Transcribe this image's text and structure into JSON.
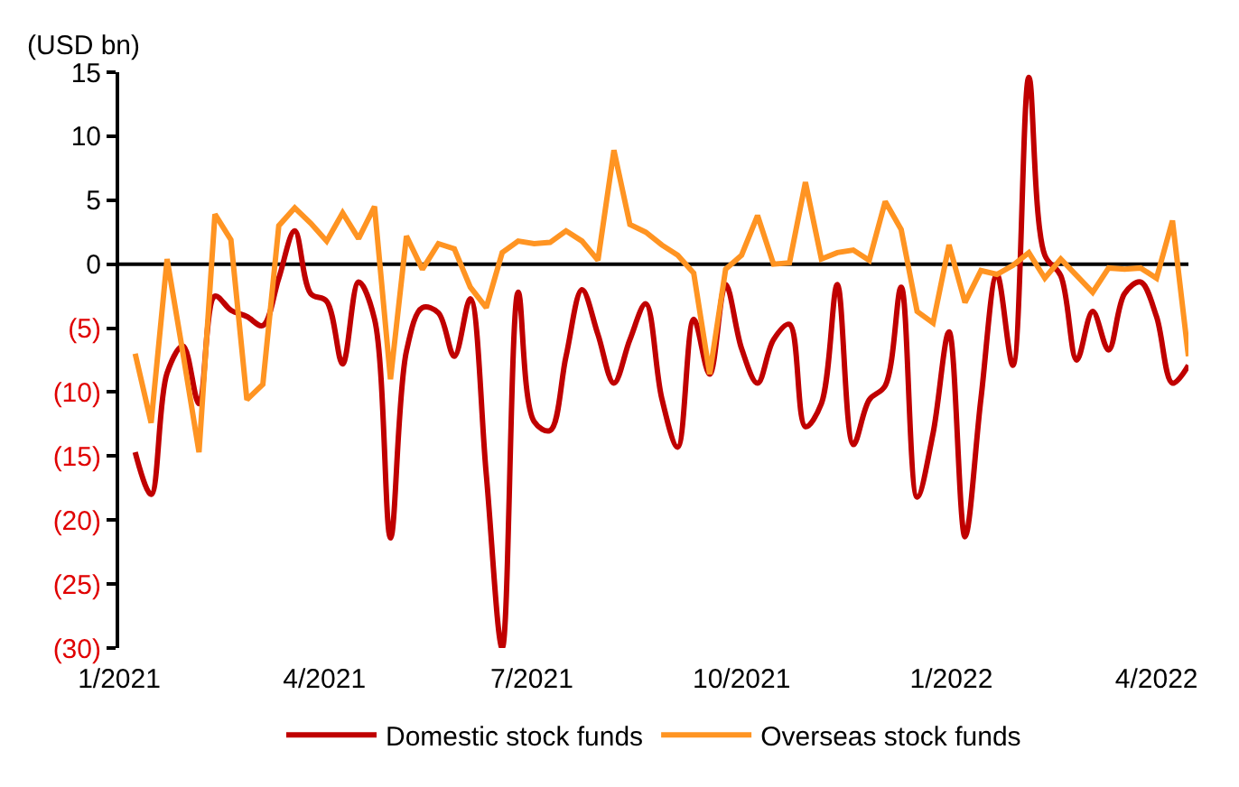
{
  "chart_data": {
    "type": "line",
    "ylabel": "(USD bn)",
    "x": [
      "2021-01-08",
      "2021-01-15",
      "2021-01-22",
      "2021-01-29",
      "2021-02-05",
      "2021-02-12",
      "2021-02-19",
      "2021-02-26",
      "2021-03-05",
      "2021-03-12",
      "2021-03-19",
      "2021-03-26",
      "2021-04-02",
      "2021-04-09",
      "2021-04-16",
      "2021-04-23",
      "2021-04-30",
      "2021-05-07",
      "2021-05-14",
      "2021-05-21",
      "2021-05-28",
      "2021-06-04",
      "2021-06-11",
      "2021-06-18",
      "2021-06-25",
      "2021-07-02",
      "2021-07-09",
      "2021-07-16",
      "2021-07-23",
      "2021-07-30",
      "2021-08-06",
      "2021-08-13",
      "2021-08-20",
      "2021-08-27",
      "2021-09-03",
      "2021-09-10",
      "2021-09-17",
      "2021-09-24",
      "2021-10-01",
      "2021-10-08",
      "2021-10-15",
      "2021-10-22",
      "2021-10-29",
      "2021-11-05",
      "2021-11-12",
      "2021-11-19",
      "2021-11-26",
      "2021-12-03",
      "2021-12-10",
      "2021-12-17",
      "2021-12-24",
      "2021-12-31",
      "2022-01-07",
      "2022-01-14",
      "2022-01-21",
      "2022-01-28",
      "2022-02-04",
      "2022-02-11",
      "2022-02-18",
      "2022-02-25",
      "2022-03-04",
      "2022-03-11",
      "2022-03-18",
      "2022-03-25",
      "2022-04-01",
      "2022-04-08",
      "2022-04-15"
    ],
    "series": [
      {
        "name": "Domestic stock funds",
        "color": "#c00000",
        "values": [
          -14.7,
          -18.0,
          -8.5,
          -6.4,
          -10.9,
          -2.5,
          -3.6,
          -4.1,
          -4.8,
          -1.1,
          2.6,
          -2.3,
          -2.9,
          -7.8,
          -1.4,
          -4.3,
          -21.4,
          -6.8,
          -3.4,
          -3.8,
          -7.2,
          -2.7,
          -16.4,
          -30.0,
          -2.2,
          -12.3,
          -13.0,
          -7.2,
          -2.0,
          -5.5,
          -9.3,
          -5.9,
          -3.1,
          -10.5,
          -14.3,
          -4.3,
          -8.6,
          -1.6,
          -6.6,
          -9.3,
          -5.9,
          -4.7,
          -12.7,
          -10.9,
          -1.6,
          -14.1,
          -10.6,
          -9.5,
          -1.8,
          -18.2,
          -13.2,
          -5.3,
          -21.3,
          -10.5,
          -0.8,
          -7.9,
          14.6,
          0.7,
          -0.9,
          -7.5,
          -3.7,
          -6.7,
          -2.3,
          -1.4,
          -4.1,
          -9.3,
          -7.9
        ]
      },
      {
        "name": "Overseas stock funds",
        "color": "#ff9422",
        "values": [
          -7.0,
          -12.4,
          0.4,
          -7.0,
          -14.7,
          3.9,
          1.9,
          -10.6,
          -9.4,
          3.0,
          4.4,
          3.2,
          1.8,
          4.0,
          2.0,
          4.5,
          -9.0,
          2.2,
          -0.4,
          1.6,
          1.2,
          -1.8,
          -3.4,
          0.9,
          1.8,
          1.6,
          1.7,
          2.6,
          1.8,
          0.3,
          8.9,
          3.1,
          2.5,
          1.5,
          0.7,
          -0.7,
          -8.6,
          -0.4,
          0.7,
          3.8,
          0.0,
          0.1,
          6.4,
          0.4,
          0.9,
          1.1,
          0.3,
          4.9,
          2.7,
          -3.7,
          -4.6,
          1.5,
          -3.0,
          -0.5,
          -0.8,
          -0.1,
          0.9,
          -1.1,
          0.4,
          -0.9,
          -2.2,
          -0.3,
          -0.4,
          -0.3,
          -1.1,
          3.4,
          -7.2
        ]
      }
    ],
    "xlim": [
      "2021-01-01",
      "2022-04-15"
    ],
    "xticks": [
      {
        "value": "2021-01-01",
        "label": "1/2021"
      },
      {
        "value": "2021-04-01",
        "label": "4/2021"
      },
      {
        "value": "2021-07-01",
        "label": "7/2021"
      },
      {
        "value": "2021-10-01",
        "label": "10/2021"
      },
      {
        "value": "2022-01-01",
        "label": "1/2022"
      },
      {
        "value": "2022-04-01",
        "label": "4/2022"
      }
    ],
    "ylim": [
      -30,
      15
    ],
    "yticks": [
      15,
      10,
      5,
      0,
      {
        "value": -5,
        "label": "(5)"
      },
      {
        "value": -10,
        "label": "(10)"
      },
      {
        "value": -15,
        "label": "(15)"
      },
      {
        "value": -20,
        "label": "(20)"
      },
      {
        "value": -25,
        "label": "(25)"
      },
      {
        "value": -30,
        "label": "(30)"
      }
    ],
    "ref_lines": [
      {
        "axis": "y",
        "value": 0,
        "color": "#000000"
      }
    ],
    "grid": false,
    "legend": "bottom",
    "marker": "none",
    "line_style": "solid"
  }
}
